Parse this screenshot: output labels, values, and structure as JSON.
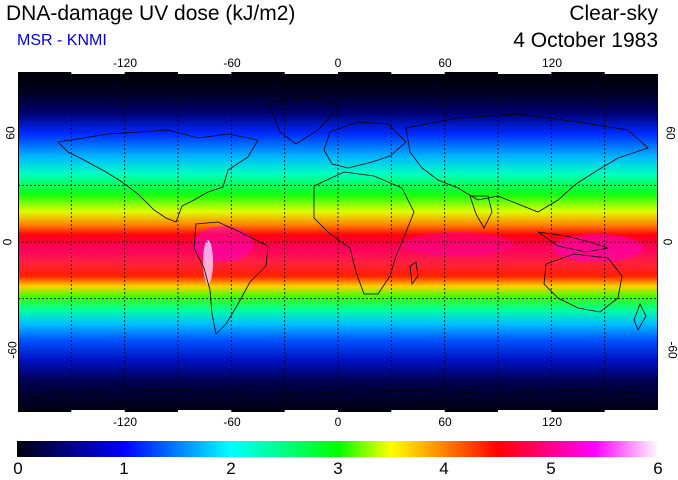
{
  "header": {
    "title": "DNA-damage UV dose (kJ/m2)",
    "subtitle": "MSR - KNMI",
    "sky_condition": "Clear-sky",
    "date": "4 October 1983"
  },
  "map": {
    "lon_ticks": [
      "-120",
      "-60",
      "0",
      "60",
      "120"
    ],
    "lat_ticks": [
      "60",
      "0",
      "-60"
    ],
    "lon_range": [
      -180,
      180
    ],
    "lat_range": [
      -90,
      90
    ],
    "grid": true
  },
  "colorbar": {
    "labels": [
      "0",
      "1",
      "2",
      "3",
      "4",
      "5",
      "6"
    ],
    "colors": [
      "#000010",
      "#0000ff",
      "#00ffff",
      "#00ff00",
      "#ffff00",
      "#ff0000",
      "#ff00ff",
      "#ffffff"
    ]
  }
}
